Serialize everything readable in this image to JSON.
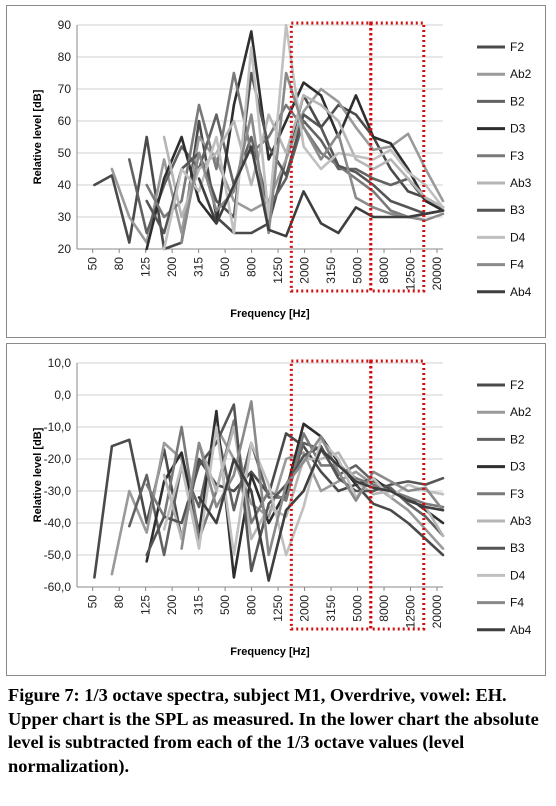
{
  "charts": [
    {
      "type": "line",
      "title": "",
      "xlabel": "Frequency [Hz]",
      "ylabel": "Relative level [dB]",
      "ylim": [
        20,
        90
      ],
      "yticks": [
        "20",
        "30",
        "40",
        "50",
        "60",
        "70",
        "80",
        "90"
      ],
      "x_tick_labels": [
        "50",
        "80",
        "125",
        "200",
        "315",
        "500",
        "800",
        "1250",
        "2000",
        "3150",
        "5000",
        "8000",
        "12500",
        "20000"
      ],
      "grid": "horizontal",
      "legend_placement": "right",
      "highlight_boxes": [
        "2000–5000 Hz",
        "8000–12500 Hz"
      ],
      "series": [
        {
          "name": "F2",
          "values": [
            null,
            40,
            43,
            22,
            55,
            20,
            22,
            60,
            30,
            25,
            25,
            28,
            48,
            68,
            58,
            65,
            62,
            55,
            45,
            38,
            36,
            33
          ]
        },
        {
          "name": "Ab2",
          "values": [
            null,
            null,
            45,
            30,
            22,
            48,
            25,
            55,
            48,
            35,
            32,
            35,
            48,
            63,
            70,
            66,
            58,
            51,
            52,
            56,
            45,
            35
          ]
        },
        {
          "name": "B2",
          "values": [
            null,
            null,
            null,
            48,
            25,
            40,
            52,
            45,
            62,
            40,
            55,
            33,
            42,
            60,
            54,
            45,
            45,
            42,
            40,
            42,
            35,
            33
          ]
        },
        {
          "name": "D3",
          "values": [
            null,
            null,
            null,
            null,
            20,
            42,
            55,
            35,
            28,
            65,
            88,
            48,
            60,
            72,
            68,
            55,
            68,
            55,
            53,
            45,
            35,
            32
          ]
        },
        {
          "name": "F3",
          "values": [
            null,
            null,
            null,
            null,
            40,
            30,
            35,
            65,
            45,
            75,
            50,
            55,
            65,
            58,
            50,
            46,
            42,
            38,
            32,
            30,
            31,
            32
          ]
        },
        {
          "name": "Ab3",
          "values": [
            null,
            null,
            null,
            null,
            null,
            55,
            30,
            45,
            50,
            60,
            40,
            62,
            50,
            68,
            65,
            60,
            48,
            45,
            48,
            42,
            36,
            33
          ]
        },
        {
          "name": "B3",
          "values": [
            null,
            null,
            null,
            null,
            35,
            25,
            45,
            50,
            35,
            30,
            75,
            52,
            43,
            62,
            58,
            46,
            44,
            40,
            35,
            33,
            31,
            32
          ]
        },
        {
          "name": "D4",
          "values": [
            null,
            null,
            null,
            null,
            null,
            20,
            45,
            38,
            55,
            25,
            83,
            30,
            90,
            52,
            45,
            50,
            49,
            48,
            51,
            44,
            40,
            33
          ]
        },
        {
          "name": "F4",
          "values": [
            null,
            null,
            null,
            null,
            null,
            null,
            22,
            50,
            32,
            38,
            62,
            25,
            75,
            58,
            48,
            56,
            36,
            33,
            31,
            30,
            29,
            31
          ]
        },
        {
          "name": "Ab4",
          "values": [
            null,
            null,
            null,
            null,
            null,
            null,
            null,
            42,
            28,
            40,
            52,
            26,
            24,
            38,
            28,
            25,
            33,
            30,
            30,
            30,
            31,
            32
          ]
        }
      ]
    },
    {
      "type": "line",
      "title": "",
      "xlabel": "Frequency [Hz]",
      "ylabel": "Relative level [dB]",
      "ylim": [
        -60,
        10
      ],
      "yticks": [
        "-60,0",
        "-50,0",
        "-40,0",
        "-30,0",
        "-20,0",
        "-10,0",
        "0,0",
        "10,0"
      ],
      "x_tick_labels": [
        "50",
        "80",
        "125",
        "200",
        "315",
        "500",
        "800",
        "1250",
        "2000",
        "3150",
        "5000",
        "8000",
        "12500",
        "20000"
      ],
      "grid": "horizontal",
      "legend_placement": "right",
      "highlight_boxes": [
        "2000–5000 Hz",
        "8000–12500 Hz"
      ],
      "series": [
        {
          "name": "F2",
          "values": [
            null,
            -57,
            -16,
            -14,
            -40,
            -17,
            -45,
            -20,
            -28,
            -30,
            -24,
            -31,
            -12,
            -16,
            -24,
            -30,
            -28,
            -34,
            -36,
            -40,
            -45,
            -50
          ]
        },
        {
          "name": "Ab2",
          "values": [
            null,
            null,
            -56,
            -30,
            -43,
            -15,
            -20,
            -45,
            -10,
            -20,
            -34,
            -38,
            -20,
            -18,
            -30,
            -27,
            -24,
            -28,
            -32,
            -36,
            -42,
            -48
          ]
        },
        {
          "name": "B2",
          "values": [
            null,
            null,
            null,
            -41,
            -25,
            -50,
            -22,
            -35,
            -10,
            -36,
            -15,
            -32,
            -32,
            -15,
            -17,
            -25,
            -22,
            -27,
            -29,
            -34,
            -38,
            -44
          ]
        },
        {
          "name": "D3",
          "values": [
            null,
            null,
            null,
            null,
            -52,
            -27,
            -18,
            -43,
            -5,
            -57,
            -25,
            -40,
            -30,
            -9,
            -13,
            -21,
            -28,
            -26,
            -30,
            -32,
            -36,
            -40
          ]
        },
        {
          "name": "F3",
          "values": [
            null,
            null,
            null,
            null,
            -28,
            -38,
            -10,
            -45,
            -30,
            -8,
            -40,
            -30,
            -33,
            -12,
            -22,
            -22,
            -26,
            -28,
            -30,
            -32,
            -34,
            -35
          ]
        },
        {
          "name": "Ab3",
          "values": [
            null,
            null,
            null,
            null,
            null,
            -25,
            -45,
            -15,
            -30,
            -10,
            -45,
            -35,
            -38,
            -20,
            -20,
            -18,
            -27,
            -31,
            -30,
            -33,
            -35,
            -44
          ]
        },
        {
          "name": "B3",
          "values": [
            null,
            null,
            null,
            null,
            -50,
            -38,
            -40,
            -22,
            -15,
            -3,
            -55,
            -34,
            -28,
            -19,
            -16,
            -26,
            -30,
            -30,
            -28,
            -27,
            -28,
            -26
          ]
        },
        {
          "name": "D4",
          "values": [
            null,
            null,
            null,
            null,
            null,
            -42,
            -22,
            -48,
            -10,
            -50,
            -15,
            -28,
            -50,
            -35,
            -14,
            -20,
            -32,
            -26,
            -32,
            -28,
            -30,
            -31
          ]
        },
        {
          "name": "F4",
          "values": [
            null,
            null,
            null,
            null,
            null,
            null,
            -48,
            -15,
            -35,
            -25,
            -2,
            -50,
            -28,
            -21,
            -13,
            -24,
            -33,
            -24,
            -27,
            -30,
            -29,
            -36
          ]
        },
        {
          "name": "Ab4",
          "values": [
            null,
            null,
            null,
            null,
            null,
            null,
            null,
            -32,
            -40,
            -20,
            -30,
            -58,
            -36,
            -30,
            -17,
            -22,
            -27,
            -29,
            -30,
            -33,
            -35,
            -36
          ]
        }
      ]
    }
  ],
  "colors": [
    "#4a4a4a",
    "#9a9a9a",
    "#626262",
    "#2e2e2e",
    "#7a7a7a",
    "#b5b5b5",
    "#555555",
    "#c0c0c0",
    "#8a8a8a",
    "#3e3e3e"
  ],
  "highlight_color": "#d01010",
  "caption": "Figure 7: 1/3 octave spectra, subject M1, Overdrive, vowel: EH. Upper chart is the SPL as measured. In the lower chart the absolute level is subtracted from each of the 1/3 octave values (level normalization)."
}
